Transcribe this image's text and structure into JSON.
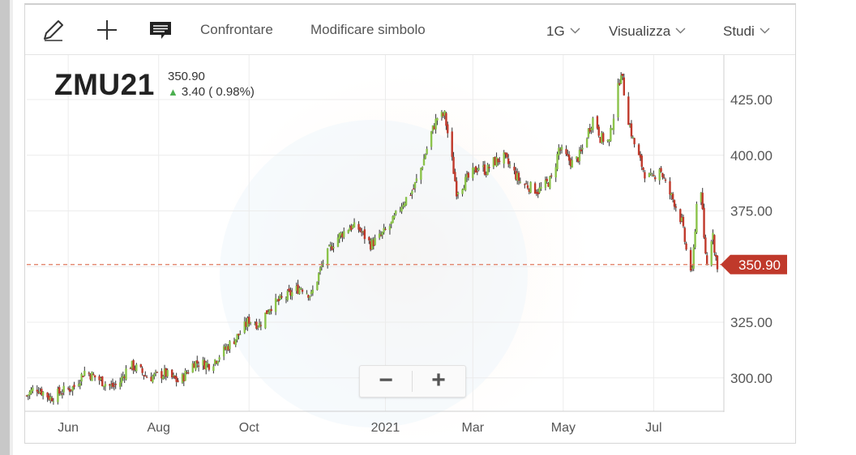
{
  "toolbar": {
    "compare_label": "Confrontare",
    "modify_symbol_label": "Modificare simbolo",
    "interval_label": "1G",
    "view_label": "Visualizza",
    "studies_label": "Studi",
    "icons": [
      "pencil-icon",
      "crosshair-plus-icon",
      "comment-icon",
      "chevron-down-icon"
    ]
  },
  "quote": {
    "symbol": "ZMU21",
    "last_price": "350.90",
    "change_text": "3.40 ( 0.98%)",
    "change_direction": "up"
  },
  "zoom": {
    "minus_label": "−",
    "plus_label": "+"
  },
  "colors": {
    "up_candle": "#8bc34a",
    "down_candle": "#c0392b",
    "price_label_bg": "#c0392b",
    "price_line": "#e07a5f",
    "grid": "#ececec"
  },
  "chart_data": {
    "type": "candlestick",
    "title": "",
    "xlabel": "",
    "ylabel": "",
    "ylim": [
      285,
      445
    ],
    "y_ticks": [
      300,
      325,
      350,
      375,
      400,
      425
    ],
    "y_tick_labels": [
      "300.00",
      "325.00",
      "375.00",
      "400.00",
      "425.00"
    ],
    "x_range": [
      "2020-05-04",
      "2021-08-13"
    ],
    "x_tick_dates": [
      "2020-06-01",
      "2020-08-01",
      "2020-10-01",
      "2021-01-01",
      "2021-03-01",
      "2021-05-01",
      "2021-07-01"
    ],
    "x_tick_labels": [
      "Jun",
      "Aug",
      "Oct",
      "2021",
      "Mar",
      "May",
      "Jul"
    ],
    "current_price": 350.9,
    "current_price_label": "350.90",
    "grid": true,
    "price_series": {
      "name": "ZMU21",
      "anchors": [
        [
          "2020-05-04",
          292
        ],
        [
          "2020-05-10",
          296
        ],
        [
          "2020-05-20",
          291
        ],
        [
          "2020-05-28",
          294
        ],
        [
          "2020-06-05",
          296
        ],
        [
          "2020-06-12",
          303
        ],
        [
          "2020-06-20",
          300
        ],
        [
          "2020-06-30",
          296
        ],
        [
          "2020-07-05",
          297
        ],
        [
          "2020-07-12",
          306
        ],
        [
          "2020-07-18",
          304
        ],
        [
          "2020-07-25",
          300
        ],
        [
          "2020-08-05",
          302
        ],
        [
          "2020-08-15",
          298
        ],
        [
          "2020-08-25",
          307
        ],
        [
          "2020-09-05",
          306
        ],
        [
          "2020-09-15",
          313
        ],
        [
          "2020-09-25",
          320
        ],
        [
          "2020-10-01",
          326
        ],
        [
          "2020-10-08",
          324
        ],
        [
          "2020-10-15",
          332
        ],
        [
          "2020-10-25",
          336
        ],
        [
          "2020-11-05",
          341
        ],
        [
          "2020-11-12",
          337
        ],
        [
          "2020-11-20",
          352
        ],
        [
          "2020-11-28",
          362
        ],
        [
          "2020-12-08",
          368
        ],
        [
          "2020-12-14",
          367
        ],
        [
          "2020-12-22",
          360
        ],
        [
          "2020-12-28",
          363
        ],
        [
          "2021-01-05",
          369
        ],
        [
          "2021-01-12",
          378
        ],
        [
          "2021-01-20",
          385
        ],
        [
          "2021-01-26",
          396
        ],
        [
          "2021-02-01",
          410
        ],
        [
          "2021-02-05",
          417
        ],
        [
          "2021-02-10",
          418
        ],
        [
          "2021-02-14",
          402
        ],
        [
          "2021-02-18",
          384
        ],
        [
          "2021-02-25",
          389
        ],
        [
          "2021-03-05",
          395
        ],
        [
          "2021-03-10",
          393
        ],
        [
          "2021-03-15",
          397
        ],
        [
          "2021-03-22",
          399
        ],
        [
          "2021-03-28",
          393
        ],
        [
          "2021-04-02",
          388
        ],
        [
          "2021-04-08",
          386
        ],
        [
          "2021-04-14",
          384
        ],
        [
          "2021-04-18",
          386
        ],
        [
          "2021-04-24",
          390
        ],
        [
          "2021-04-28",
          403
        ],
        [
          "2021-05-03",
          399
        ],
        [
          "2021-05-08",
          396
        ],
        [
          "2021-05-13",
          401
        ],
        [
          "2021-05-18",
          411
        ],
        [
          "2021-05-22",
          418
        ],
        [
          "2021-05-26",
          408
        ],
        [
          "2021-06-01",
          406
        ],
        [
          "2021-06-05",
          422
        ],
        [
          "2021-06-09",
          438
        ],
        [
          "2021-06-13",
          419
        ],
        [
          "2021-06-17",
          407
        ],
        [
          "2021-06-21",
          399
        ],
        [
          "2021-06-25",
          392
        ],
        [
          "2021-06-30",
          389
        ],
        [
          "2021-07-05",
          395
        ],
        [
          "2021-07-10",
          385
        ],
        [
          "2021-07-15",
          379
        ],
        [
          "2021-07-20",
          370
        ],
        [
          "2021-07-24",
          353
        ],
        [
          "2021-07-27",
          347
        ],
        [
          "2021-07-30",
          378
        ],
        [
          "2021-08-02",
          385
        ],
        [
          "2021-08-04",
          362
        ],
        [
          "2021-08-06",
          351
        ],
        [
          "2021-08-09",
          363
        ],
        [
          "2021-08-10",
          367
        ],
        [
          "2021-08-11",
          356
        ],
        [
          "2021-08-12",
          354
        ],
        [
          "2021-08-13",
          351
        ]
      ]
    }
  }
}
